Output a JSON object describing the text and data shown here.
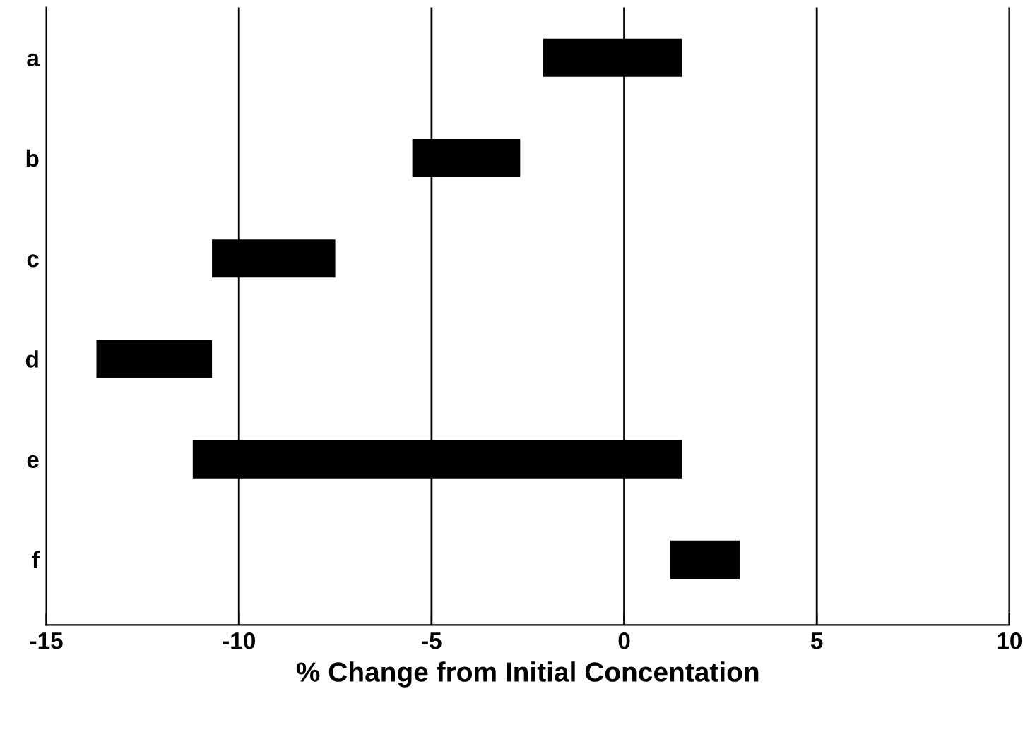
{
  "chart_data": {
    "type": "bar",
    "orientation": "horizontal",
    "xlabel": "% Change from Initial Concentation",
    "categories": [
      "a",
      "b",
      "c",
      "d",
      "e",
      "f"
    ],
    "base": [
      -2.1,
      -5.5,
      -10.7,
      -13.7,
      -11.2,
      1.2
    ],
    "values": [
      3.6,
      2.8,
      3.2,
      3.0,
      12.7,
      1.8
    ],
    "color": "#000000",
    "xlim": [
      -15,
      10
    ],
    "xticks": [
      -15,
      -10,
      -5,
      0,
      5,
      10
    ],
    "grid": "x"
  }
}
